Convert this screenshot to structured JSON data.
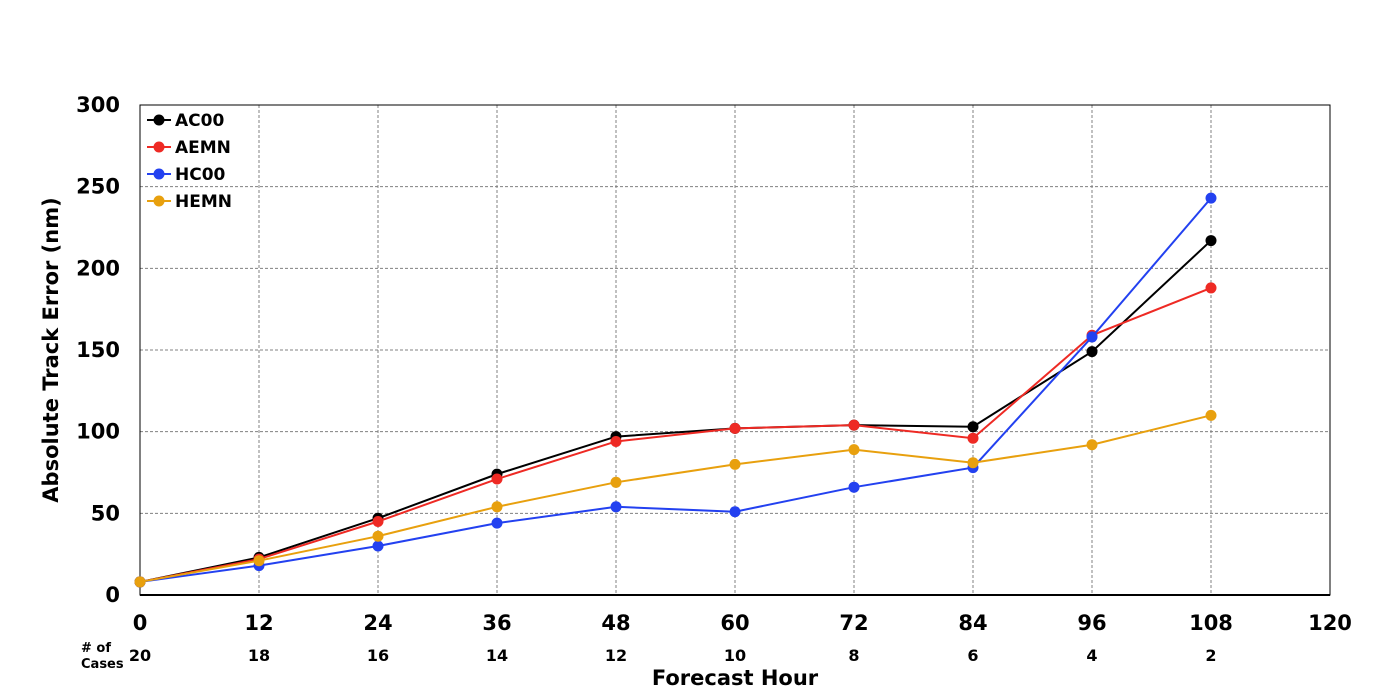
{
  "chart_data": {
    "type": "line",
    "title": "",
    "xlabel": "Forecast Hour",
    "ylabel": "Absolute Track Error (nm)",
    "xlim": [
      0,
      120
    ],
    "ylim": [
      0,
      300
    ],
    "xticks": [
      0,
      12,
      24,
      36,
      48,
      60,
      72,
      84,
      96,
      108,
      120
    ],
    "yticks": [
      0,
      50,
      100,
      150,
      200,
      250,
      300
    ],
    "grid": true,
    "legend_position": "top-left",
    "x": [
      0,
      12,
      24,
      36,
      48,
      60,
      72,
      84,
      96,
      108
    ],
    "series": [
      {
        "name": "AC00",
        "color": "#000000",
        "values": [
          8,
          23,
          47,
          74,
          97,
          102,
          104,
          103,
          149,
          217
        ]
      },
      {
        "name": "AEMN",
        "color": "#ee2a24",
        "values": [
          8,
          22,
          45,
          71,
          94,
          102,
          104,
          96,
          159,
          188
        ]
      },
      {
        "name": "HC00",
        "color": "#2341f0",
        "values": [
          8,
          18,
          30,
          44,
          54,
          51,
          66,
          78,
          158,
          243
        ]
      },
      {
        "name": "HEMN",
        "color": "#e8a00e",
        "values": [
          8,
          21,
          36,
          54,
          69,
          80,
          89,
          81,
          92,
          110
        ]
      }
    ],
    "cases": {
      "label_line1": "# of",
      "label_line2": "Cases",
      "values": [
        20,
        18,
        16,
        14,
        12,
        10,
        8,
        6,
        4,
        2
      ]
    }
  }
}
